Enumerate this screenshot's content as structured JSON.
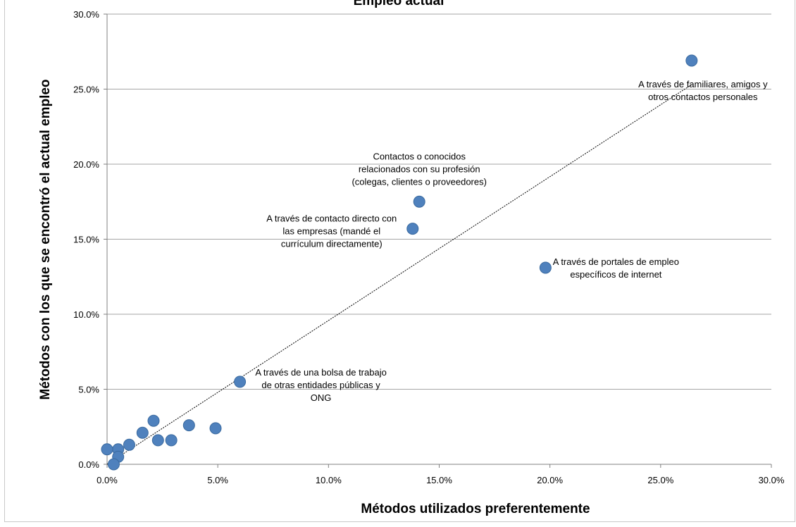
{
  "chart_data": {
    "type": "scatter",
    "title": "Empleo actual",
    "xlabel": "Métodos utilizados preferentemente",
    "ylabel": "Métodos con los que se encontró el actual empleo",
    "xlim": [
      0,
      0.3
    ],
    "ylim": [
      0,
      0.3
    ],
    "x_ticks": [
      "0.0%",
      "5.0%",
      "10.0%",
      "15.0%",
      "20.0%",
      "25.0%",
      "30.0%"
    ],
    "y_ticks": [
      "0.0%",
      "5.0%",
      "10.0%",
      "15.0%",
      "20.0%",
      "25.0%",
      "30.0%"
    ],
    "grid": "horizontal",
    "legend": "none",
    "colors": {
      "marker": "#4f81bd",
      "marker_edge": "#3a6a9f",
      "grid": "#a6a6a6",
      "trendline": "#000000"
    },
    "trendline": {
      "type": "linear",
      "x": [
        0.0,
        0.264
      ],
      "y": [
        0.0,
        0.253
      ]
    },
    "points": [
      {
        "x": 0.264,
        "y": 0.269,
        "label": [
          "A través de familiares, amigos y",
          "otros contactos personales"
        ]
      },
      {
        "x": 0.141,
        "y": 0.175,
        "label": [
          "Contactos o conocidos",
          "relacionados con su profesión",
          "(colegas, clientes o proveedores)"
        ]
      },
      {
        "x": 0.138,
        "y": 0.157,
        "label": [
          "A través de contacto directo con",
          "las empresas  (mandé el",
          "currículum directamente)"
        ]
      },
      {
        "x": 0.198,
        "y": 0.131,
        "label": [
          "A través de portales de empleo",
          "específicos de internet"
        ]
      },
      {
        "x": 0.06,
        "y": 0.055,
        "label": [
          "A través de una bolsa de trabajo",
          "de otras entidades  públicas y",
          "ONG"
        ]
      },
      {
        "x": 0.049,
        "y": 0.024
      },
      {
        "x": 0.037,
        "y": 0.026
      },
      {
        "x": 0.029,
        "y": 0.016
      },
      {
        "x": 0.023,
        "y": 0.016
      },
      {
        "x": 0.021,
        "y": 0.029
      },
      {
        "x": 0.016,
        "y": 0.021
      },
      {
        "x": 0.01,
        "y": 0.013
      },
      {
        "x": 0.005,
        "y": 0.01
      },
      {
        "x": 0.005,
        "y": 0.005
      },
      {
        "x": 0.003,
        "y": 0.0
      },
      {
        "x": 0.0,
        "y": 0.01
      }
    ]
  }
}
